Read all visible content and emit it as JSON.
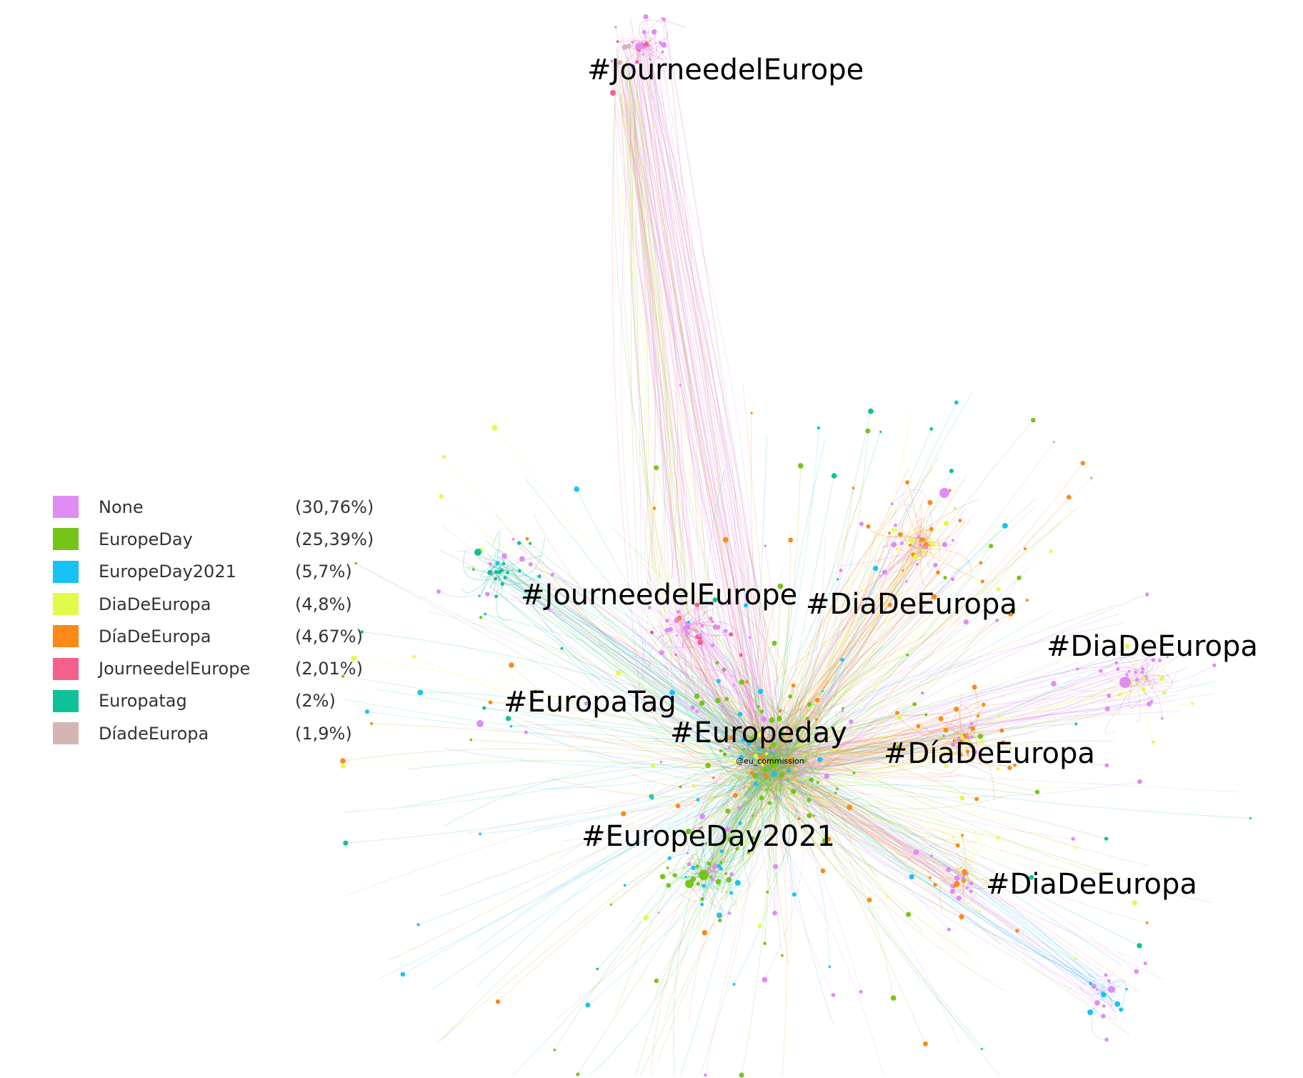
{
  "legend": [
    {
      "label": "None",
      "pct": "(30,76%)",
      "color": "#e08cf5"
    },
    {
      "label": "EuropeDay",
      "pct": "(25,39%)",
      "color": "#76c41a"
    },
    {
      "label": "EuropeDay2021",
      "pct": "(5,7%)",
      "color": "#17c3f5"
    },
    {
      "label": "DiaDeEuropa",
      "pct": "(4,8%)",
      "color": "#e2fb4a"
    },
    {
      "label": "DíaDeEuropa",
      "pct": "(4,67%)",
      "color": "#fd8a16"
    },
    {
      "label": "JourneedelEurope",
      "pct": "(2,01%)",
      "color": "#f45f8c"
    },
    {
      "label": "Europatag",
      "pct": "(2%)",
      "color": "#0fc196"
    },
    {
      "label": "DíadeEuropa",
      "pct": "(1,9%)",
      "color": "#d5b5b1"
    }
  ],
  "clusters": {
    "journee_top": "#JourneedelEurope",
    "journee_mid": "#JourneedelEurope",
    "dia_1": "#DiaDeEuropa",
    "dia_2": "#DiaDeEuropa",
    "europatag": "#EuropaTag",
    "europeday": "#Europeday",
    "diade_accent": "#DíaDeEuropa",
    "europeday2021": "#EuropeDay2021",
    "dia_3": "#DiaDeEuropa"
  },
  "hub_node": "@eu_commission"
}
